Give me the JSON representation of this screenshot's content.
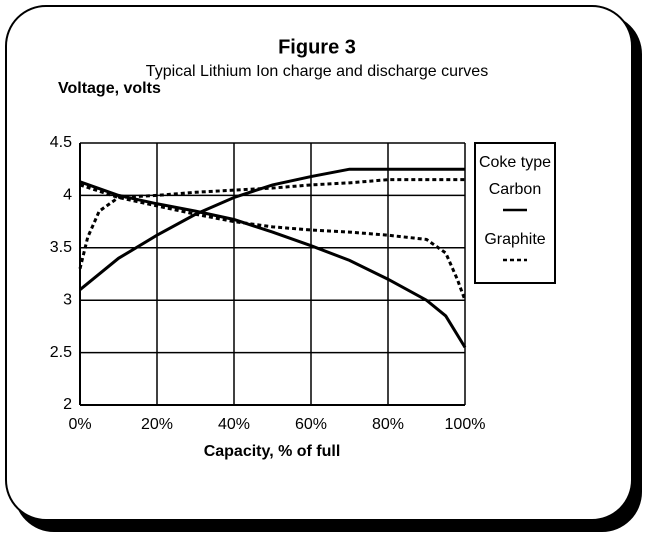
{
  "chart_data": {
    "type": "line",
    "title": "Figure 3",
    "subtitle": "Typical Lithium Ion charge and discharge curves",
    "y_label": "Voltage, volts",
    "x_label": "Capacity, % of full",
    "xlim": [
      0,
      100
    ],
    "xticks": [
      {
        "value": 0,
        "label": "0%"
      },
      {
        "value": 20,
        "label": "20%"
      },
      {
        "value": 40,
        "label": "40%"
      },
      {
        "value": 60,
        "label": "60%"
      },
      {
        "value": 80,
        "label": "80%"
      },
      {
        "value": 100,
        "label": "100%"
      }
    ],
    "ylim": [
      2,
      4.5
    ],
    "yticks": [
      2,
      2.5,
      3,
      3.5,
      4,
      4.5
    ],
    "grid": true,
    "legend_title": "Coke type",
    "series": [
      {
        "name": "Carbon",
        "color": "#000000",
        "dash": "solid",
        "curves": [
          {
            "x": [
              0,
              10,
              20,
              30,
              40,
              50,
              60,
              70,
              80,
              90,
              100
            ],
            "values": [
              3.1,
              3.4,
              3.62,
              3.82,
              3.98,
              4.1,
              4.18,
              4.25,
              4.25,
              4.25,
              4.25
            ]
          },
          {
            "x": [
              0,
              10,
              20,
              30,
              40,
              50,
              60,
              70,
              80,
              90,
              95,
              100
            ],
            "values": [
              4.13,
              4.0,
              3.92,
              3.85,
              3.77,
              3.65,
              3.52,
              3.38,
              3.2,
              3.0,
              2.85,
              2.55
            ]
          }
        ]
      },
      {
        "name": "Graphite",
        "color": "#000000",
        "dash": "dashed",
        "curves": [
          {
            "x": [
              0,
              2,
              5,
              10,
              20,
              30,
              40,
              50,
              60,
              70,
              80,
              90,
              100
            ],
            "values": [
              3.3,
              3.6,
              3.85,
              3.98,
              4.0,
              4.03,
              4.05,
              4.07,
              4.1,
              4.12,
              4.15,
              4.15,
              4.15
            ]
          },
          {
            "x": [
              0,
              10,
              20,
              30,
              40,
              50,
              60,
              70,
              80,
              90,
              95,
              98,
              100
            ],
            "values": [
              4.1,
              3.98,
              3.9,
              3.82,
              3.75,
              3.7,
              3.67,
              3.65,
              3.62,
              3.58,
              3.45,
              3.2,
              3.0
            ]
          }
        ]
      }
    ]
  }
}
